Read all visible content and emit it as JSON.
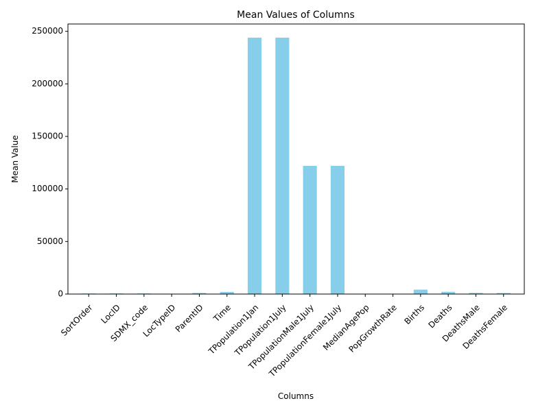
{
  "chart_data": {
    "type": "bar",
    "title": "Mean Values of Columns",
    "xlabel": "Columns",
    "ylabel": "Mean Value",
    "categories": [
      "SortOrder",
      "LocID",
      "SDMX_code",
      "LocTypeID",
      "ParentID",
      "Time",
      "TPopulation1Jan",
      "TPopulation1July",
      "TPopulationMale1July",
      "TPopulationFemale1July",
      "MedianAgePop",
      "PopGrowthRate",
      "Births",
      "Deaths",
      "DeathsMale",
      "DeathsFemale"
    ],
    "values": [
      520,
      560,
      560,
      5,
      1050,
      2010,
      244000,
      244000,
      122000,
      122000,
      30,
      1.2,
      4200,
      2100,
      1100,
      1000
    ],
    "yticks": [
      0,
      50000,
      100000,
      150000,
      200000,
      250000
    ],
    "ylim": [
      0,
      257000
    ],
    "bar_color": "#87ceeb",
    "grid": false,
    "legend": "none"
  }
}
